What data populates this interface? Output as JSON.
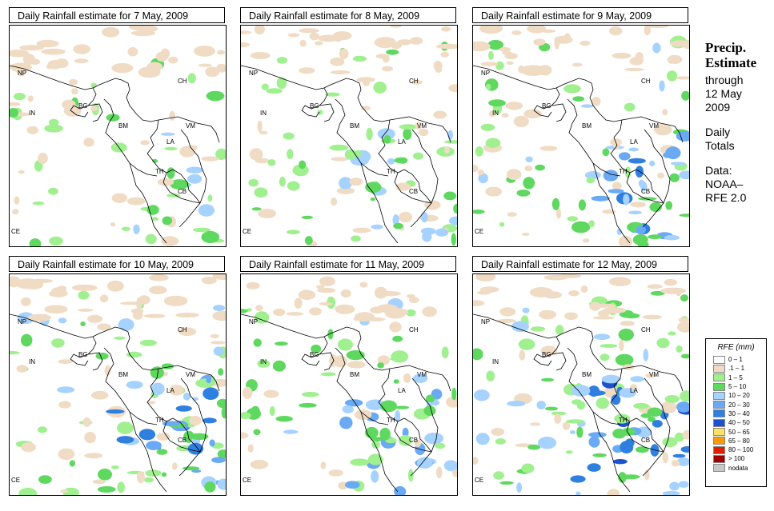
{
  "panels": [
    {
      "title": "Daily Rainfall estimate for  7 May, 2009",
      "intensity": 0.35
    },
    {
      "title": "Daily Rainfall estimate for  8 May, 2009",
      "intensity": 0.4
    },
    {
      "title": "Daily Rainfall estimate for  9 May, 2009",
      "intensity": 0.65
    },
    {
      "title": "Daily Rainfall estimate for  10 May, 2009",
      "intensity": 0.8
    },
    {
      "title": "Daily Rainfall estimate for  11 May, 2009",
      "intensity": 0.6
    },
    {
      "title": "Daily Rainfall estimate for  12 May, 2009",
      "intensity": 0.9
    }
  ],
  "countries": [
    "NP",
    "CH",
    "IN",
    "BG",
    "BM",
    "VM",
    "LA",
    "TH",
    "CB",
    "CE"
  ],
  "sidebar": {
    "title_line1": "Precip.",
    "title_line2": "Estimate",
    "through": "through",
    "date_line1": "12 May",
    "date_line2": "2009",
    "daily1": "Daily",
    "daily2": "Totals",
    "data1": "Data:",
    "data2": "NOAA–",
    "data3": "RFE 2.0"
  },
  "legend": {
    "title": "RFE (mm)",
    "items": [
      {
        "label": "0 – 1",
        "color": "#ffffff"
      },
      {
        "label": ".1 – 1",
        "color": "#f0dcc4"
      },
      {
        "label": "1 – 5",
        "color": "#a0f090"
      },
      {
        "label": "5 – 10",
        "color": "#5fd85f"
      },
      {
        "label": "10 – 20",
        "color": "#a6d2ff"
      },
      {
        "label": "20 – 30",
        "color": "#6aaaf5"
      },
      {
        "label": "30 – 40",
        "color": "#2f7fe0"
      },
      {
        "label": "40 – 50",
        "color": "#1c52d0"
      },
      {
        "label": "50 – 65",
        "color": "#ffe060"
      },
      {
        "label": "65 – 80",
        "color": "#ff9a00"
      },
      {
        "label": "80 – 100",
        "color": "#e02000"
      },
      {
        "label": "> 100",
        "color": "#a00000"
      },
      {
        "label": "nodata",
        "color": "#c8c8c8"
      }
    ]
  }
}
